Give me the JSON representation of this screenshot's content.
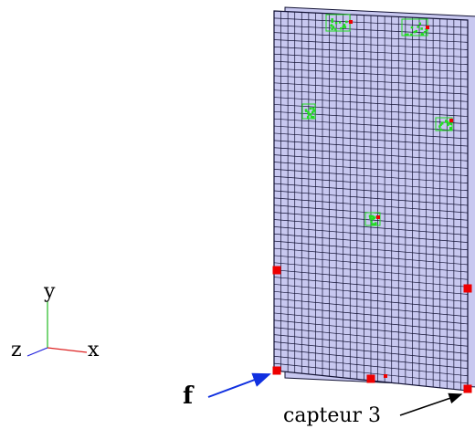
{
  "axes": {
    "x_label": "x",
    "y_label": "y",
    "z_label": "z"
  },
  "force_label": "f",
  "sensor_label": "capteur 3",
  "colors": {
    "plate_fill": "#c8c8f0",
    "mesh_line": "#111133",
    "sensor": "#ee0000",
    "patch": "#22dd22",
    "force_arrow": "#1030e0",
    "axis_x": "#dd2222",
    "axis_y": "#22bb22",
    "axis_z": "#2222dd"
  },
  "mesh": {
    "columns": 28,
    "rows": 50
  }
}
